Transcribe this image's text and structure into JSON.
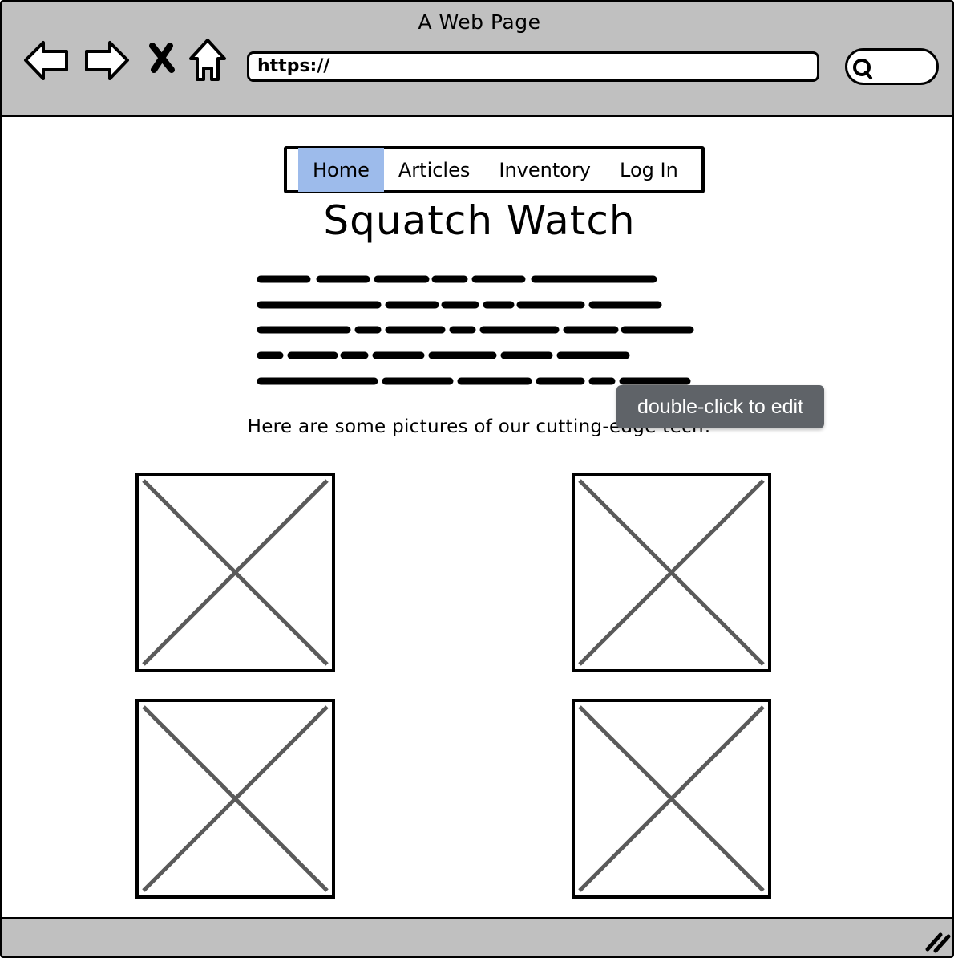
{
  "window": {
    "title": "A Web Page"
  },
  "toolbar": {
    "back_icon": "arrow-left-icon",
    "forward_icon": "arrow-right-icon",
    "stop_icon": "close-icon",
    "home_icon": "home-icon",
    "url": "https://",
    "search_icon": "search-icon"
  },
  "menu": {
    "items": [
      {
        "label": "Home",
        "active": true
      },
      {
        "label": "Articles",
        "active": false
      },
      {
        "label": "Inventory",
        "active": false
      },
      {
        "label": "Log In",
        "active": false
      }
    ],
    "active_color": "#9dbbeb"
  },
  "page": {
    "title": "Squatch Watch",
    "caption": "Here are some pictures of our cutting-edge tech!"
  },
  "tooltip": {
    "text": "double-click to edit"
  },
  "colors": {
    "chrome": "#c0c0c0",
    "tooltip_bg": "#5f6368",
    "placeholder_stroke": "#5a5a5a"
  }
}
